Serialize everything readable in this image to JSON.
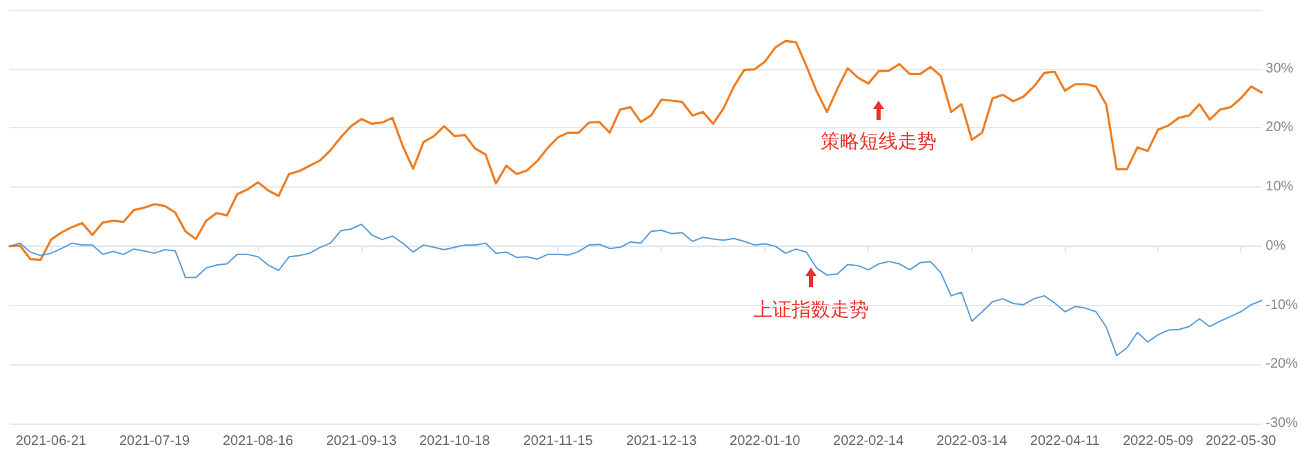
{
  "chart_data": {
    "type": "line",
    "categories": [
      null,
      null,
      null,
      null,
      "2021-06-21",
      null,
      null,
      null,
      null,
      null,
      null,
      null,
      null,
      null,
      "2021-07-19",
      null,
      null,
      null,
      null,
      null,
      null,
      null,
      null,
      null,
      "2021-08-16",
      null,
      null,
      null,
      null,
      null,
      null,
      null,
      null,
      null,
      "2021-09-13",
      null,
      null,
      null,
      null,
      null,
      null,
      null,
      null,
      "2021-10-18",
      null,
      null,
      null,
      null,
      null,
      null,
      null,
      null,
      null,
      "2021-11-15",
      null,
      null,
      null,
      null,
      null,
      null,
      null,
      null,
      null,
      "2021-12-13",
      null,
      null,
      null,
      null,
      null,
      null,
      null,
      null,
      null,
      "2022-01-10",
      null,
      null,
      null,
      null,
      null,
      null,
      null,
      null,
      null,
      "2022-02-14",
      null,
      null,
      null,
      null,
      null,
      null,
      null,
      null,
      null,
      "2022-03-14",
      null,
      null,
      null,
      null,
      null,
      null,
      null,
      null,
      "2022-04-11",
      null,
      null,
      null,
      null,
      null,
      null,
      null,
      null,
      "2022-05-09",
      null,
      null,
      null,
      null,
      null,
      null,
      null,
      "2022-05-30",
      null,
      null
    ],
    "series": [
      {
        "color": "#ee7d22",
        "values": [
          0.0,
          0.1,
          -2.2,
          -2.3,
          1.1,
          2.3,
          3.2,
          3.9,
          1.9,
          4.0,
          4.3,
          4.1,
          6.1,
          6.5,
          7.1,
          6.8,
          5.7,
          2.5,
          1.2,
          4.3,
          5.6,
          5.2,
          8.8,
          9.6,
          10.8,
          9.4,
          8.5,
          12.2,
          12.7,
          13.6,
          14.5,
          16.2,
          18.4,
          20.3,
          21.5,
          20.7,
          20.9,
          21.7,
          16.9,
          13.1,
          17.6,
          18.6,
          20.3,
          18.6,
          18.8,
          16.5,
          15.5,
          10.6,
          13.6,
          12.2,
          12.8,
          14.4,
          16.6,
          18.4,
          19.2,
          19.2,
          20.9,
          21.0,
          19.2,
          23.1,
          23.5,
          21.0,
          22.1,
          24.8,
          24.6,
          24.4,
          22.1,
          22.7,
          20.7,
          23.3,
          27.0,
          29.8,
          29.9,
          31.2,
          33.6,
          34.7,
          34.5,
          30.5,
          26.2,
          22.7,
          26.6,
          30.1,
          28.5,
          27.5,
          29.6,
          29.7,
          30.8,
          29.1,
          29.1,
          30.3,
          28.8,
          22.7,
          24.0,
          18.0,
          19.2,
          25.0,
          25.6,
          24.5,
          25.3,
          27.0,
          29.3,
          29.5,
          26.3,
          27.4,
          27.4,
          27.0,
          23.9,
          13.0,
          13.0,
          16.7,
          16.1,
          19.7,
          20.4,
          21.7,
          22.1,
          24.0,
          21.4,
          23.1,
          23.5,
          25.0,
          27.0,
          26.0
        ]
      },
      {
        "color": "#5a9bd8",
        "values": [
          0,
          0.5,
          -1.0,
          -1.6,
          -1.2,
          -0.4,
          0.5,
          0.2,
          0.2,
          -1.4,
          -0.9,
          -1.4,
          -0.5,
          -0.8,
          -1.2,
          -0.6,
          -0.8,
          -5.3,
          -5.3,
          -3.7,
          -3.2,
          -3.0,
          -1.4,
          -1.4,
          -1.8,
          -3.2,
          -4.1,
          -1.8,
          -1.6,
          -1.2,
          -0.2,
          0.5,
          2.6,
          2.9,
          3.7,
          1.9,
          1.1,
          1.7,
          0.5,
          -1.0,
          0.2,
          -0.2,
          -0.6,
          -0.2,
          0.2,
          0.2,
          0.5,
          -1.2,
          -1.0,
          -1.9,
          -1.8,
          -2.2,
          -1.4,
          -1.4,
          -1.5,
          -0.9,
          0.2,
          0.3,
          -0.4,
          -0.2,
          0.7,
          0.5,
          2.5,
          2.7,
          2.1,
          2.3,
          0.8,
          1.5,
          1.2,
          1.0,
          1.3,
          0.8,
          0.2,
          0.4,
          0,
          -1.2,
          -0.5,
          -1.0,
          -3.7,
          -4.9,
          -4.7,
          -3.1,
          -3.3,
          -4.0,
          -3.0,
          -2.6,
          -3.0,
          -4.0,
          -2.8,
          -2.6,
          -4.5,
          -8.4,
          -7.8,
          -12.7,
          -11.1,
          -9.4,
          -8.9,
          -9.7,
          -9.9,
          -8.9,
          -8.4,
          -9.6,
          -11.1,
          -10.2,
          -10.5,
          -11.1,
          -13.7,
          -18.5,
          -17.2,
          -14.6,
          -16.2,
          -15.0,
          -14.2,
          -14.1,
          -13.6,
          -12.3,
          -13.6,
          -12.7,
          -11.9,
          -11.1,
          -9.9,
          -9.2
        ]
      }
    ],
    "ylim": [
      -30,
      40
    ],
    "yticks": [
      {
        "value": 40,
        "label": null
      },
      {
        "value": 30,
        "label": "30%"
      },
      {
        "value": 20,
        "label": "20%"
      },
      {
        "value": 10,
        "label": "10%"
      },
      {
        "value": 0,
        "label": "0%"
      },
      {
        "value": -10,
        "label": "-10%"
      },
      {
        "value": -20,
        "label": "-20%"
      },
      {
        "value": -30,
        "label": "-30%"
      }
    ],
    "grid": "y",
    "annotations": [
      "策略短线走势",
      "上证指数走势"
    ]
  }
}
